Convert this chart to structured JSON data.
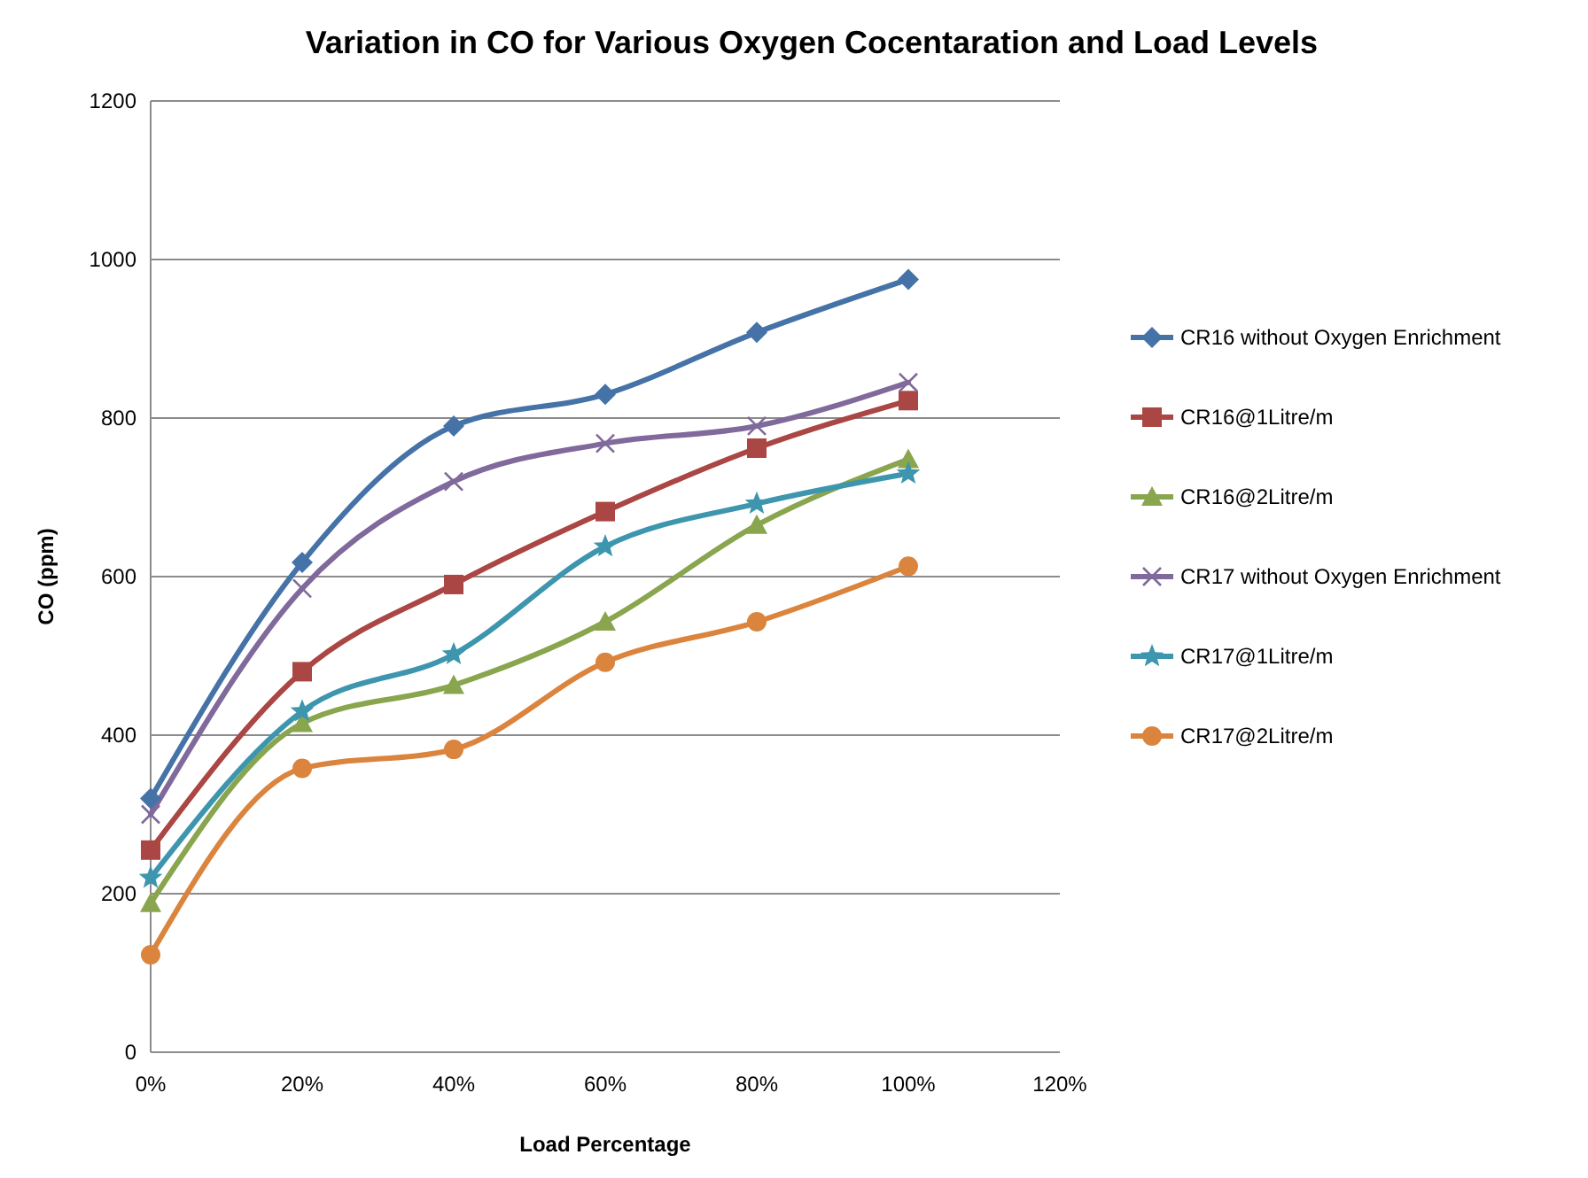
{
  "chart_data": {
    "type": "line",
    "title": "Variation in CO for Various Oxygen Cocentaration and Load Levels",
    "xlabel": "Load Percentage",
    "ylabel": "CO (ppm)",
    "x": [
      0,
      20,
      40,
      60,
      80,
      100
    ],
    "xlim": [
      0,
      120
    ],
    "xticks": [
      {
        "value": 0,
        "label": "0%"
      },
      {
        "value": 20,
        "label": "20%"
      },
      {
        "value": 40,
        "label": "40%"
      },
      {
        "value": 60,
        "label": "60%"
      },
      {
        "value": 80,
        "label": "80%"
      },
      {
        "value": 100,
        "label": "100%"
      },
      {
        "value": 120,
        "label": "120%"
      }
    ],
    "ylim": [
      0,
      1200
    ],
    "yticks": [
      0,
      200,
      400,
      600,
      800,
      1000,
      1200
    ],
    "grid": "y",
    "legend": "right",
    "series": [
      {
        "name": "CR16 without Oxygen Enrichment",
        "color": "#4572a7",
        "marker": "diamond",
        "values": [
          320,
          618,
          790,
          830,
          908,
          975
        ]
      },
      {
        "name": "CR16@1Litre/m",
        "color": "#aa4643",
        "marker": "square",
        "values": [
          255,
          480,
          590,
          682,
          762,
          822
        ]
      },
      {
        "name": "CR16@2Litre/m",
        "color": "#89a54e",
        "marker": "triangle",
        "values": [
          188,
          415,
          463,
          543,
          665,
          748
        ]
      },
      {
        "name": "CR17 without Oxygen Enrichment",
        "color": "#80699b",
        "marker": "cross",
        "values": [
          300,
          585,
          720,
          768,
          790,
          845
        ]
      },
      {
        "name": "CR17@1Litre/m",
        "color": "#3d96ae",
        "marker": "star",
        "values": [
          220,
          430,
          502,
          638,
          692,
          730
        ]
      },
      {
        "name": "CR17@2Litre/m",
        "color": "#db843d",
        "marker": "circle",
        "values": [
          123,
          358,
          382,
          492,
          543,
          613
        ]
      }
    ]
  }
}
